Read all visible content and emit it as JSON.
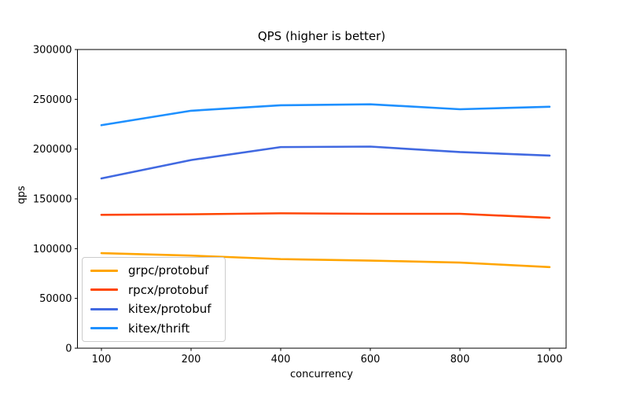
{
  "chart_data": {
    "type": "line",
    "title": "QPS (higher is better)",
    "xlabel": "concurrency",
    "ylabel": "qps",
    "categories": [
      100,
      200,
      400,
      600,
      800,
      1000
    ],
    "x_spacing": "categorical-even",
    "ylim": [
      0,
      300000
    ],
    "yticks": [
      0,
      50000,
      100000,
      150000,
      200000,
      250000,
      300000
    ],
    "grid": false,
    "legend_position": "lower-left",
    "axis_color": "#000000",
    "legend_border_color": "#cccccc",
    "series": [
      {
        "name": "grpc/protobuf",
        "color": "#FFA500",
        "values": [
          95500,
          93000,
          89500,
          88000,
          86000,
          81500
        ]
      },
      {
        "name": "rpcx/protobuf",
        "color": "#FF4500",
        "values": [
          134000,
          134500,
          135500,
          135000,
          135000,
          131000
        ]
      },
      {
        "name": "kitex/protobuf",
        "color": "#4169E1",
        "values": [
          170500,
          189000,
          202000,
          202500,
          197000,
          193500
        ]
      },
      {
        "name": "kitex/thrift",
        "color": "#1E90FF",
        "values": [
          224000,
          238500,
          244000,
          245000,
          240000,
          242500
        ]
      }
    ]
  }
}
